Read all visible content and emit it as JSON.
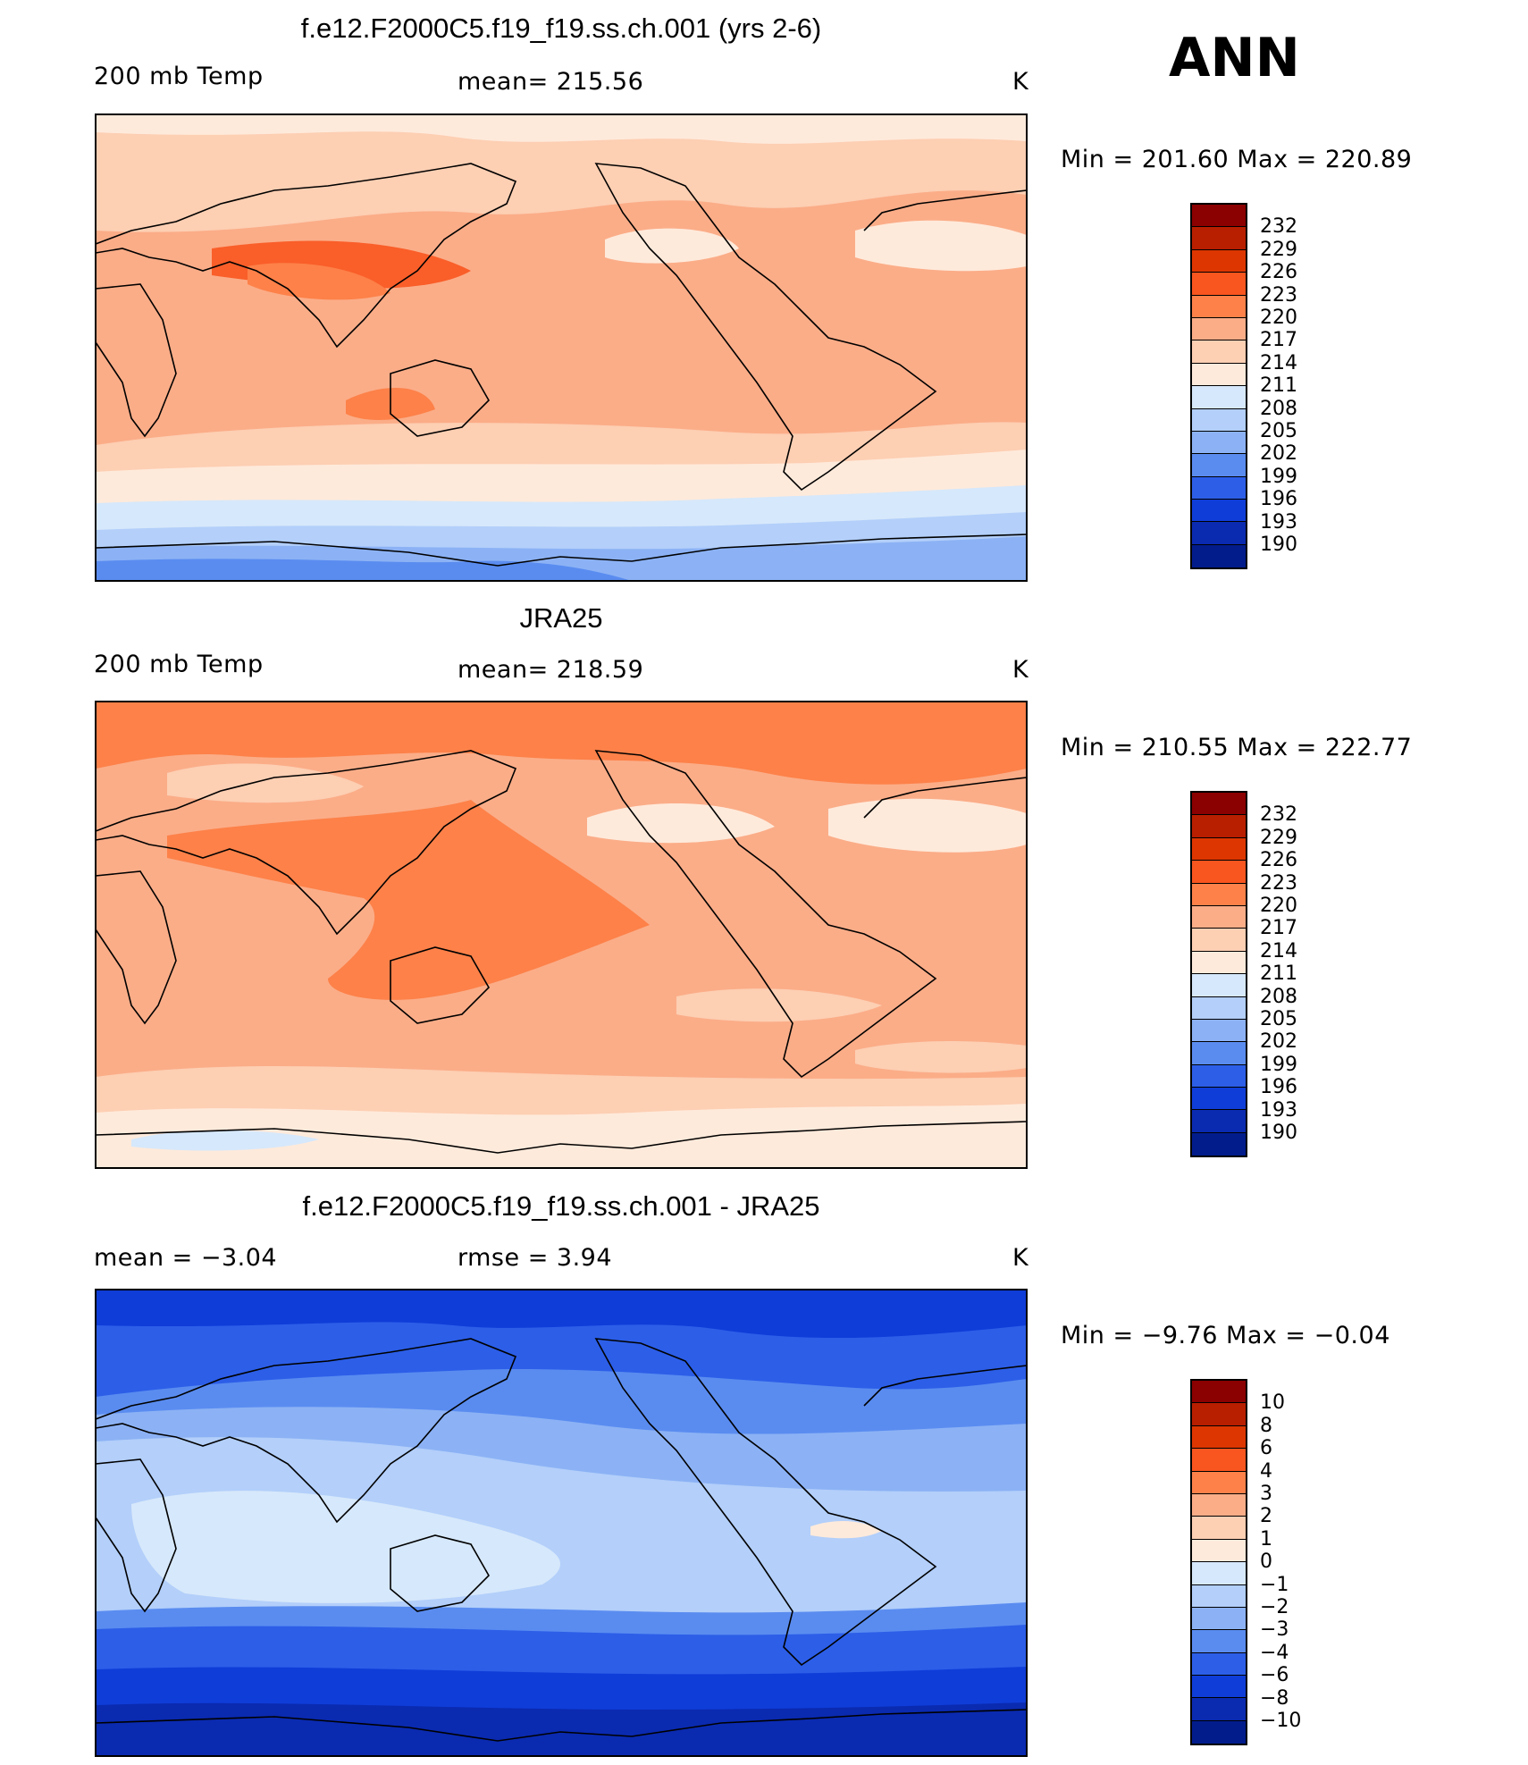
{
  "season": "ANN",
  "panels": [
    {
      "title": "f.e12.F2000C5.f19_f19.ss.ch.001 (yrs 2-6)",
      "left_label": "200 mb Temp",
      "center_label": "mean=  215.56",
      "units": "K",
      "minmax": "Min  =  201.60  Max  =  220.89",
      "colorbar_labels": [
        "232",
        "229",
        "226",
        "223",
        "220",
        "217",
        "214",
        "211",
        "208",
        "205",
        "202",
        "199",
        "196",
        "193",
        "190"
      ]
    },
    {
      "title": "JRA25",
      "left_label": "200 mb Temp",
      "center_label": "mean=  218.59",
      "units": "K",
      "minmax": "Min  =  210.55  Max  =  222.77",
      "colorbar_labels": [
        "232",
        "229",
        "226",
        "223",
        "220",
        "217",
        "214",
        "211",
        "208",
        "205",
        "202",
        "199",
        "196",
        "193",
        "190"
      ]
    },
    {
      "title": "f.e12.F2000C5.f19_f19.ss.ch.001 - JRA25",
      "left_label": "mean  =    −3.04",
      "center_label": "rmse  =     3.94",
      "units": "K",
      "minmax": "Min  =    −9.76  Max  =    −0.04",
      "colorbar_labels": [
        "10",
        "8",
        "6",
        "4",
        "3",
        "2",
        "1",
        "0",
        "−1",
        "−2",
        "−3",
        "−4",
        "−6",
        "−8",
        "−10"
      ]
    }
  ],
  "colorbar_colors": [
    "#8b0000",
    "#b81e00",
    "#dd3600",
    "#f9551f",
    "#fd8149",
    "#fbad88",
    "#fdcfb3",
    "#feeadb",
    "#d6e8fb",
    "#b3cffa",
    "#8cb2f5",
    "#5a8cf0",
    "#2c5ee8",
    "#0f3dd8",
    "#0a2ab0",
    "#021c8c"
  ]
}
